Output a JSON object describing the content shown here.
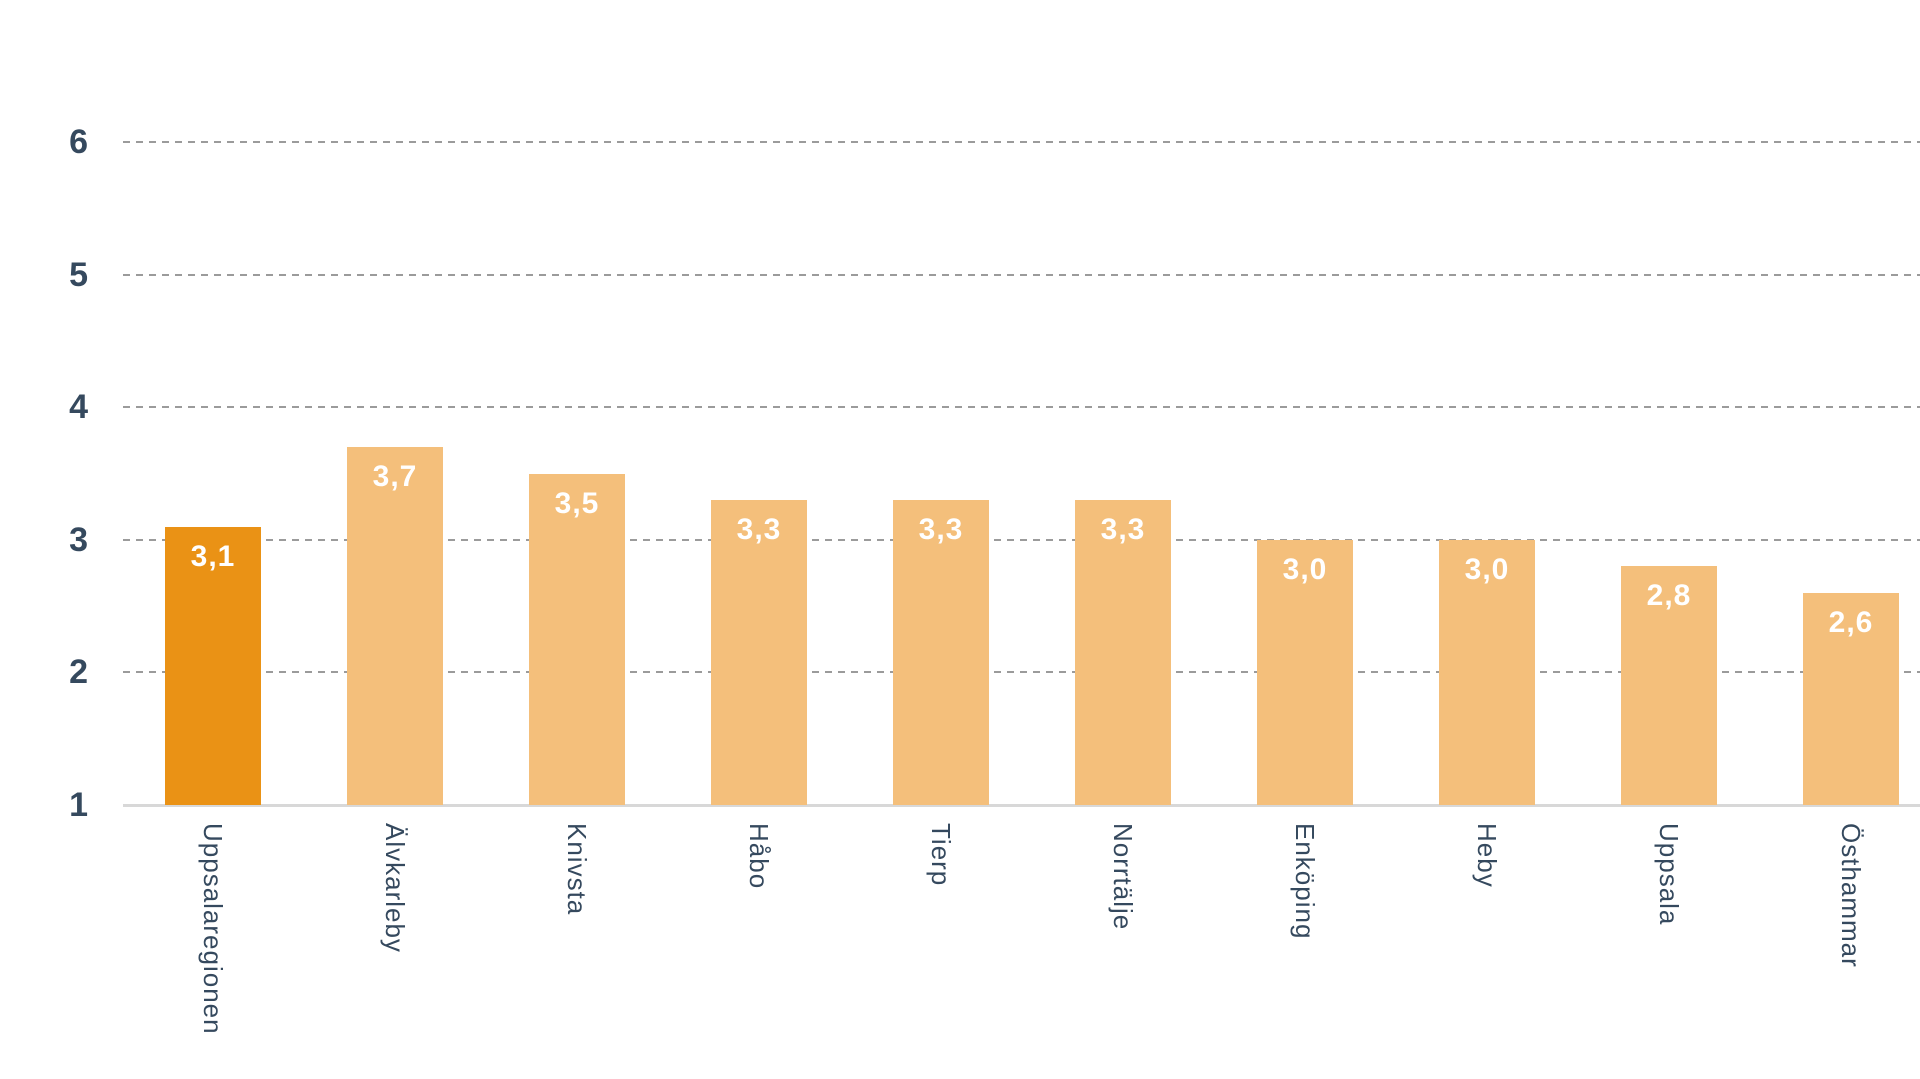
{
  "chart_data": {
    "type": "bar",
    "categories": [
      "Uppsalaregionen",
      "Älvkarleby",
      "Knivsta",
      "Håbo",
      "Tierp",
      "Norrtälje",
      "Enköping",
      "Heby",
      "Uppsala",
      "Östhammar"
    ],
    "values": [
      3.1,
      3.7,
      3.5,
      3.3,
      3.3,
      3.3,
      3.0,
      3.0,
      2.8,
      2.6
    ],
    "value_labels": [
      "3,1",
      "3,7",
      "3,5",
      "3,3",
      "3,3",
      "3,3",
      "3,0",
      "3,0",
      "2,8",
      "2,6"
    ],
    "decimal_separator": ",",
    "highlight_index": 0,
    "highlighted_category": "Uppsalaregionen",
    "y_axis": {
      "min": 1,
      "max": 6,
      "ticks": [
        "1",
        "2",
        "3",
        "4",
        "5",
        "6"
      ],
      "baseline_value": 1
    },
    "grid": "horizontal-dashed",
    "legend": "none",
    "x_label_orientation": "vertical"
  },
  "colors": {
    "bar_default": "#f4bf7b",
    "bar_highlight": "#ea9215",
    "value_label": "#ffffff",
    "axis_text": "#35495e",
    "gridline": "#9b9b9b",
    "baseline": "#d8d8d8",
    "background": "#ffffff"
  }
}
